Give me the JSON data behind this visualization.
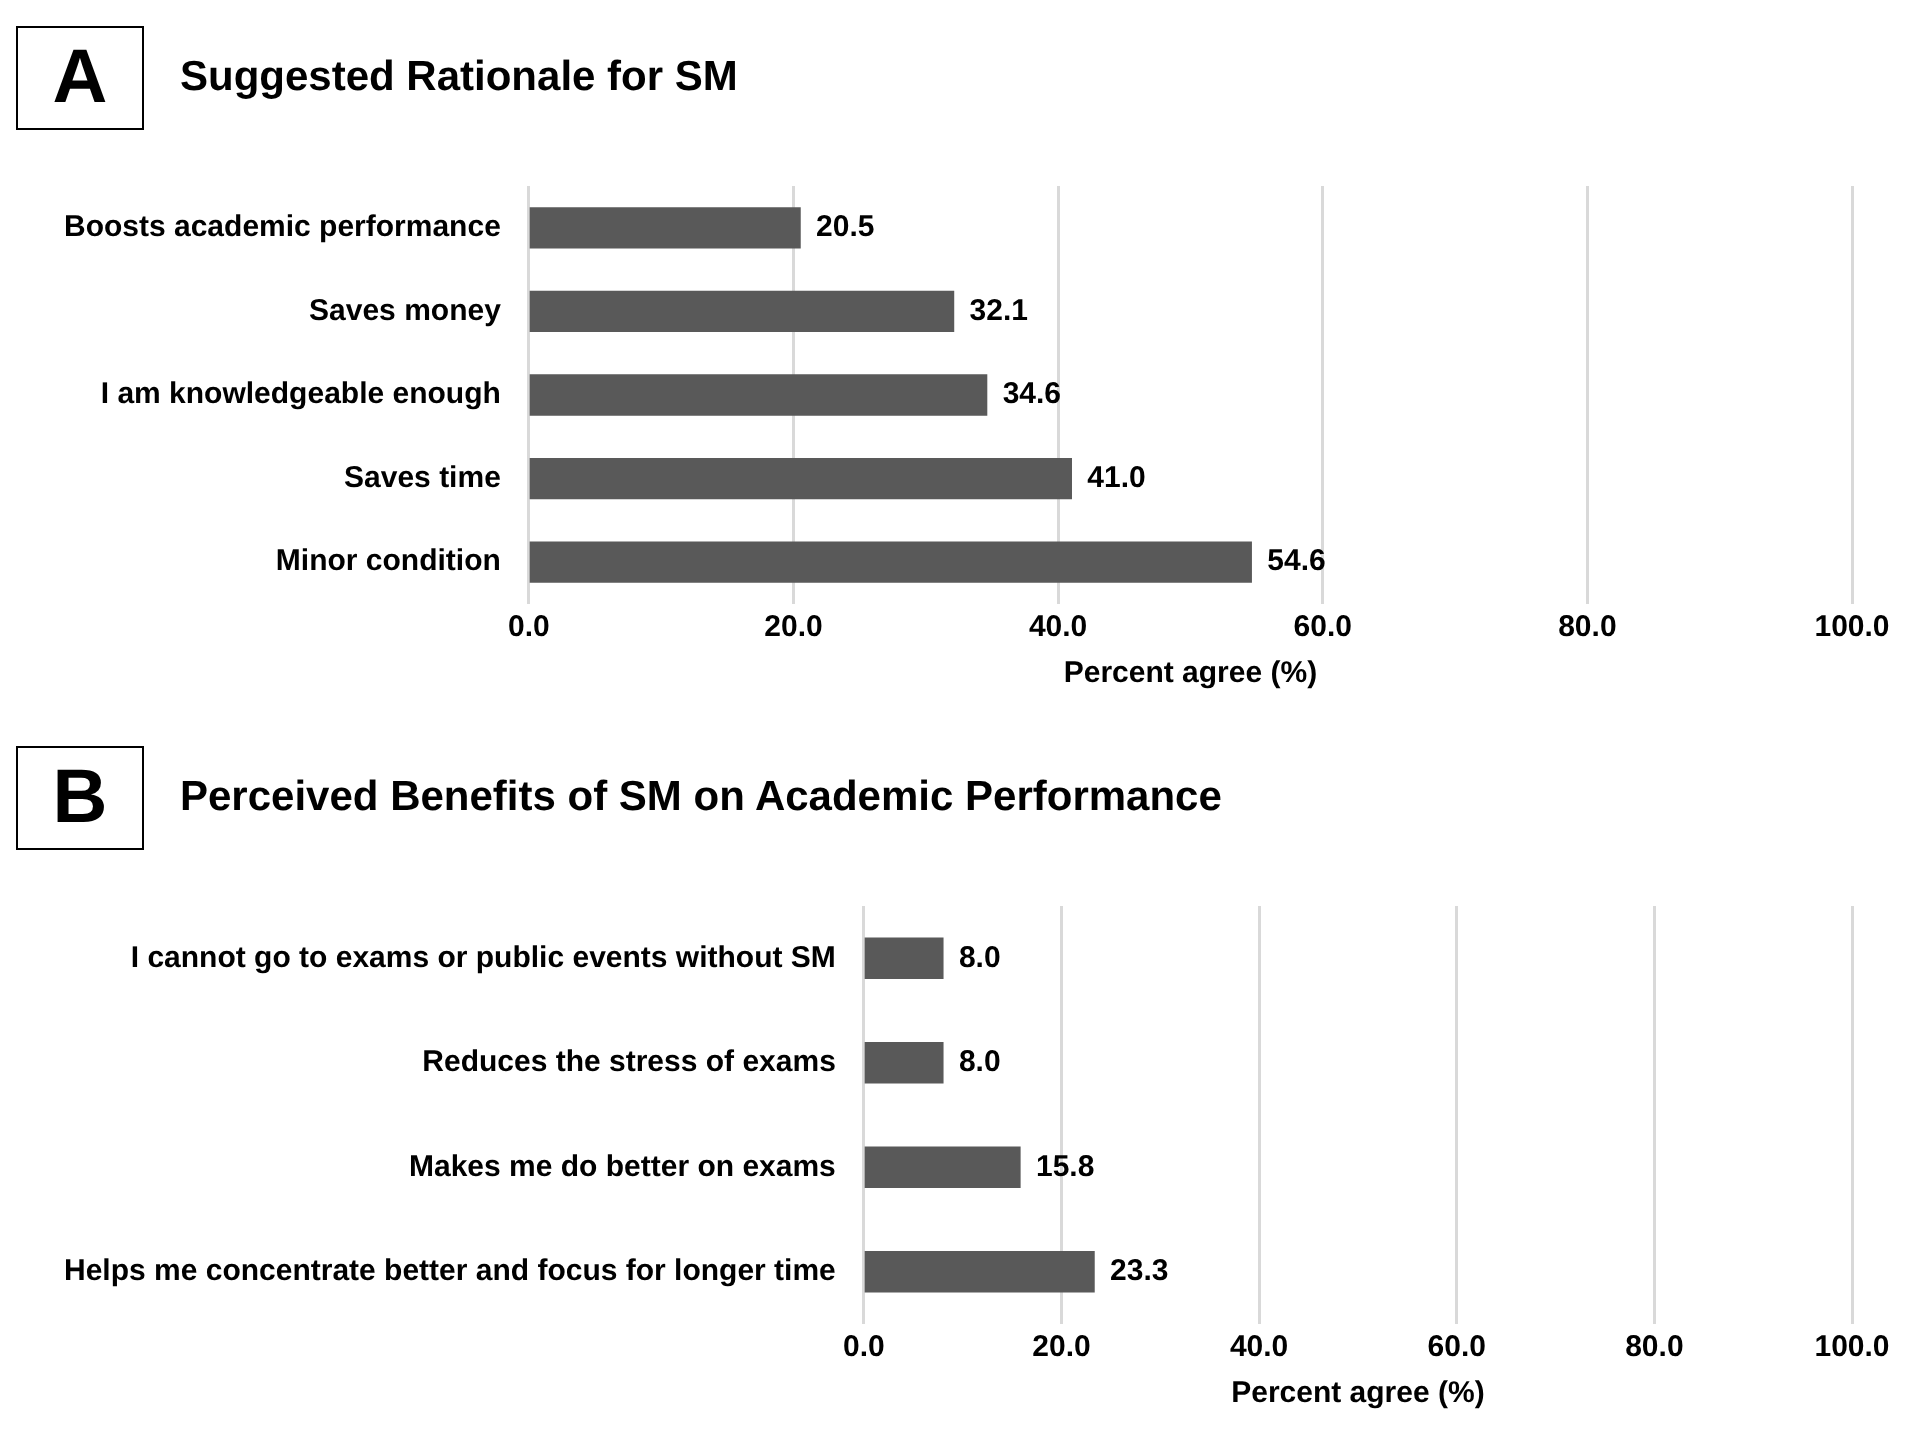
{
  "chart_data": [
    {
      "type": "bar",
      "orientation": "horizontal",
      "title": "Suggested Rationale for SM",
      "annotations": [
        "A"
      ],
      "categories": [
        "Boosts academic performance",
        "Saves money",
        "I am knowledgeable enough",
        "Saves time",
        "Minor condition"
      ],
      "values": [
        20.5,
        32.1,
        34.6,
        41.0,
        54.6
      ],
      "value_labels": [
        "20.5",
        "32.1",
        "34.6",
        "41.0",
        "54.6"
      ],
      "color": "#595959",
      "xlabel": "Percent agree (%)",
      "xlim": [
        0,
        100
      ],
      "xticks": [
        {
          "value": 0,
          "label": "0.0"
        },
        {
          "value": 20,
          "label": "20.0"
        },
        {
          "value": 40,
          "label": "40.0"
        },
        {
          "value": 60,
          "label": "60.0"
        },
        {
          "value": 80,
          "label": "80.0"
        },
        {
          "value": 100,
          "label": "100.0"
        }
      ],
      "grid": "x",
      "legend": false
    },
    {
      "type": "bar",
      "orientation": "horizontal",
      "title": "Perceived Benefits of SM on Academic Performance",
      "annotations": [
        "B"
      ],
      "categories": [
        "I cannot go to exams or public events without SM",
        "Reduces the stress of exams",
        "Makes me do better on exams",
        "Helps me concentrate better and focus for longer time"
      ],
      "values": [
        8.0,
        8.0,
        15.8,
        23.3
      ],
      "value_labels": [
        "8.0",
        "8.0",
        "15.8",
        "23.3"
      ],
      "color": "#595959",
      "xlabel": "Percent agree (%)",
      "xlim": [
        0,
        100
      ],
      "xticks": [
        {
          "value": 0,
          "label": "0.0"
        },
        {
          "value": 20,
          "label": "20.0"
        },
        {
          "value": 40,
          "label": "40.0"
        },
        {
          "value": 60,
          "label": "60.0"
        },
        {
          "value": 80,
          "label": "80.0"
        },
        {
          "value": 100,
          "label": "100.0"
        }
      ],
      "grid": "x",
      "legend": false
    }
  ]
}
